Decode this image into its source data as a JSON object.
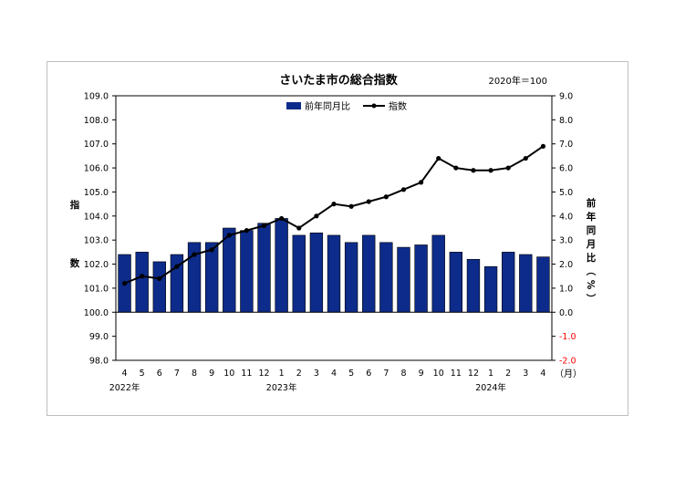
{
  "chart_data": {
    "type": "bar+line",
    "title": "さいたま市の総合指数",
    "subtitle": "2020年＝100",
    "ylabel_left": "指数",
    "ylabel_right": "前年同月比（%）",
    "xunit": "（月）",
    "left_ylim": [
      98.0,
      109.0
    ],
    "left_ticks": [
      "98.0",
      "99.0",
      "100.0",
      "101.0",
      "102.0",
      "103.0",
      "104.0",
      "105.0",
      "106.0",
      "107.0",
      "108.0",
      "109.0"
    ],
    "right_ylim": [
      -2.0,
      9.0
    ],
    "right_ticks": [
      "-2.0",
      "-1.0",
      "0.0",
      "1.0",
      "2.0",
      "3.0",
      "4.0",
      "5.0",
      "6.0",
      "7.0",
      "8.0",
      "9.0"
    ],
    "categories": [
      "4",
      "5",
      "6",
      "7",
      "8",
      "9",
      "10",
      "11",
      "12",
      "1",
      "2",
      "3",
      "4",
      "5",
      "6",
      "7",
      "8",
      "9",
      "10",
      "11",
      "12",
      "1",
      "2",
      "3",
      "4"
    ],
    "years": [
      {
        "label": "2022年",
        "index": 0
      },
      {
        "label": "2023年",
        "index": 9
      },
      {
        "label": "2024年",
        "index": 21
      }
    ],
    "legend": {
      "position": "top-center",
      "bar_label": "前年同月比",
      "line_label": "指数"
    },
    "series": [
      {
        "name": "前年同月比",
        "type": "bar",
        "axis": "right",
        "color": "#0d2b8a",
        "values": [
          2.4,
          2.5,
          2.1,
          2.4,
          2.9,
          2.9,
          3.5,
          3.4,
          3.7,
          3.9,
          3.2,
          3.3,
          3.2,
          2.9,
          3.2,
          2.9,
          2.7,
          2.8,
          3.2,
          2.5,
          2.2,
          1.9,
          2.5,
          2.4,
          2.3
        ]
      },
      {
        "name": "指数",
        "type": "line",
        "axis": "left",
        "color": "#000000",
        "values": [
          101.2,
          101.5,
          101.4,
          101.9,
          102.4,
          102.6,
          103.2,
          103.4,
          103.6,
          103.9,
          103.5,
          104.0,
          104.5,
          104.4,
          104.6,
          104.8,
          105.1,
          105.4,
          106.4,
          106.0,
          105.9,
          105.9,
          106.0,
          106.4,
          106.9
        ]
      }
    ],
    "colors": {
      "bar": "#0d2b8a",
      "line": "#000000",
      "negative_tick": "#ff0000"
    }
  }
}
